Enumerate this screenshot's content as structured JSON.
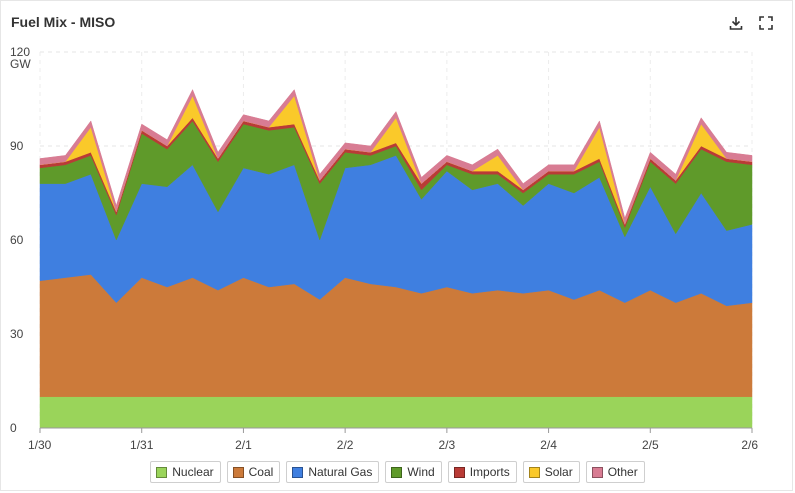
{
  "header": {
    "title": "Fuel Mix - MISO"
  },
  "toolbar": {
    "download_icon": "download-icon",
    "fullscreen_icon": "expand-icon"
  },
  "chart_data": {
    "type": "area",
    "stacked": true,
    "title": "Fuel Mix - MISO",
    "ylabel": "",
    "y_unit": "GW",
    "ylim": [
      0,
      120
    ],
    "y_ticks": [
      0,
      30,
      60,
      90,
      120
    ],
    "xlim": [
      "1/30",
      "2/6"
    ],
    "x_ticks": [
      "1/30",
      "1/31",
      "2/1",
      "2/2",
      "2/3",
      "2/4",
      "2/5",
      "2/6"
    ],
    "grid": true,
    "legend_position": "bottom",
    "x": [
      "1/30 00:00",
      "1/30 06:00",
      "1/30 12:00",
      "1/30 18:00",
      "1/31 00:00",
      "1/31 06:00",
      "1/31 12:00",
      "1/31 18:00",
      "2/1 00:00",
      "2/1 06:00",
      "2/1 12:00",
      "2/1 18:00",
      "2/2 00:00",
      "2/2 06:00",
      "2/2 12:00",
      "2/2 18:00",
      "2/3 00:00",
      "2/3 06:00",
      "2/3 12:00",
      "2/3 18:00",
      "2/4 00:00",
      "2/4 06:00",
      "2/4 12:00",
      "2/4 18:00",
      "2/5 00:00",
      "2/5 06:00",
      "2/5 12:00",
      "2/5 18:00",
      "2/6 00:00"
    ],
    "series": [
      {
        "name": "Nuclear",
        "color": "#9ad45a",
        "values": [
          10,
          10,
          10,
          10,
          10,
          10,
          10,
          10,
          10,
          10,
          10,
          10,
          10,
          10,
          10,
          10,
          10,
          10,
          10,
          10,
          10,
          10,
          10,
          10,
          10,
          10,
          10,
          10,
          10
        ]
      },
      {
        "name": "Coal",
        "color": "#cc7a3a",
        "values": [
          37,
          38,
          39,
          30,
          38,
          35,
          38,
          34,
          38,
          35,
          36,
          31,
          38,
          36,
          35,
          33,
          35,
          33,
          34,
          33,
          34,
          31,
          34,
          30,
          34,
          30,
          33,
          29,
          30
        ]
      },
      {
        "name": "Natural Gas",
        "color": "#3f7fe0",
        "values": [
          31,
          30,
          32,
          20,
          30,
          32,
          36,
          25,
          35,
          36,
          38,
          19,
          35,
          38,
          42,
          30,
          37,
          33,
          34,
          28,
          34,
          34,
          36,
          21,
          33,
          22,
          32,
          24,
          25
        ]
      },
      {
        "name": "Wind",
        "color": "#5f9a2a",
        "values": [
          5,
          6,
          6,
          8,
          16,
          12,
          14,
          16,
          14,
          14,
          12,
          18,
          5,
          3,
          3,
          3,
          2,
          5,
          3,
          4,
          3,
          6,
          5,
          3,
          8,
          16,
          14,
          22,
          19
        ]
      },
      {
        "name": "Imports",
        "color": "#b93b36",
        "values": [
          1,
          1,
          1,
          1,
          1,
          1,
          1,
          1,
          1,
          1,
          1,
          1,
          1,
          1,
          1,
          2,
          1,
          1,
          1,
          1,
          1,
          1,
          1,
          1,
          1,
          1,
          1,
          1,
          1
        ]
      },
      {
        "name": "Solar",
        "color": "#fac92a",
        "values": [
          0,
          0,
          8,
          0,
          0,
          0,
          7,
          0,
          0,
          0,
          9,
          0,
          0,
          0,
          8,
          0,
          0,
          0,
          5,
          0,
          0,
          0,
          10,
          0,
          0,
          0,
          7,
          0,
          0
        ]
      },
      {
        "name": "Other",
        "color": "#d87c93",
        "values": [
          2,
          2,
          2,
          2,
          2,
          2,
          2,
          2,
          2,
          2,
          2,
          2,
          2,
          2,
          2,
          2,
          2,
          2,
          2,
          2,
          2,
          2,
          2,
          2,
          2,
          2,
          2,
          2,
          2
        ]
      }
    ]
  }
}
